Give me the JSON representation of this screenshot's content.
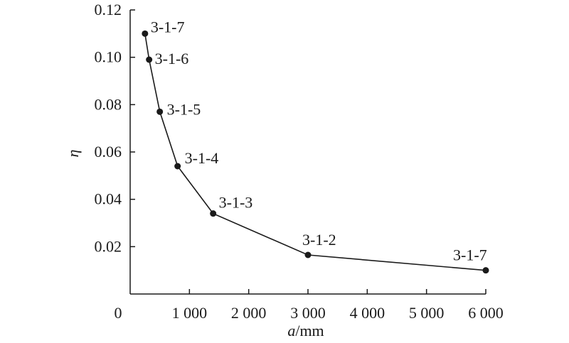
{
  "chart_data": {
    "type": "line",
    "xlabel": {
      "var": "a",
      "unit": "/mm"
    },
    "ylabel": "η",
    "xlim": [
      0,
      6000
    ],
    "ylim": [
      0,
      0.12
    ],
    "x_ticks": [
      0,
      1000,
      2000,
      3000,
      4000,
      5000,
      6000
    ],
    "x_tick_labels": [
      "0",
      "1 000",
      "2 000",
      "3 000",
      "4 000",
      "5 000",
      "6 000"
    ],
    "y_ticks": [
      0.02,
      0.04,
      0.06,
      0.08,
      0.1,
      0.12
    ],
    "y_tick_labels": [
      "0.02",
      "0.04",
      "0.06",
      "0.08",
      "0.10",
      "0.12"
    ],
    "grid": false,
    "series": [
      {
        "points": [
          {
            "x": 250,
            "y": 0.11,
            "label": "3-1-7"
          },
          {
            "x": 320,
            "y": 0.099,
            "label": "3-1-6"
          },
          {
            "x": 500,
            "y": 0.077,
            "label": "3-1-5"
          },
          {
            "x": 800,
            "y": 0.054,
            "label": "3-1-4"
          },
          {
            "x": 1400,
            "y": 0.034,
            "label": "3-1-3"
          },
          {
            "x": 3000,
            "y": 0.0165,
            "label": "3-1-2"
          },
          {
            "x": 6000,
            "y": 0.01,
            "label": "3-1-7"
          }
        ]
      }
    ]
  }
}
